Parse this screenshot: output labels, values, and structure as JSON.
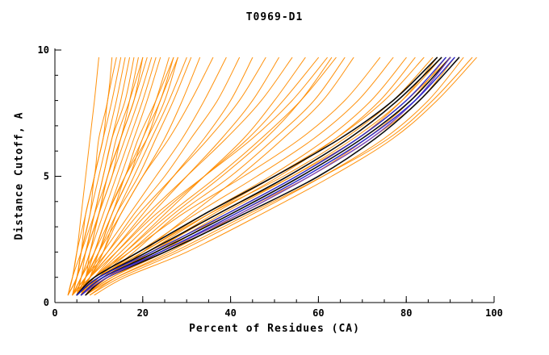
{
  "chart_data": {
    "type": "line",
    "title": "T0969-D1",
    "xlabel": "Percent of Residues (CA)",
    "ylabel": "Distance Cutoff, A",
    "x_axis": {
      "min": 0,
      "max": 100,
      "major_ticks": [
        0,
        20,
        40,
        60,
        80,
        100
      ],
      "minor_step": 5
    },
    "y_axis": {
      "min": 0,
      "max": 10,
      "major_ticks": [
        0,
        5,
        10
      ],
      "minor_step": 1
    },
    "y_grid": [
      0.3,
      1,
      2,
      3.5,
      5,
      6.5,
      8,
      9.7
    ],
    "groups": [
      {
        "name": "server-models-orange",
        "color": "#ff8c00",
        "stroke_width": 1,
        "curves": [
          [
            3,
            4,
            5,
            6,
            7,
            8,
            9,
            10
          ],
          [
            4,
            5,
            6,
            8,
            9,
            11,
            12,
            14
          ],
          [
            4,
            5,
            7,
            9,
            11,
            13,
            15,
            17
          ],
          [
            5,
            6,
            8,
            10,
            13,
            15,
            18,
            20
          ],
          [
            3,
            5,
            7,
            10,
            12,
            15,
            17,
            19
          ],
          [
            5,
            7,
            9,
            12,
            15,
            18,
            21,
            24
          ],
          [
            4,
            6,
            9,
            13,
            16,
            20,
            23,
            26
          ],
          [
            6,
            8,
            11,
            14,
            18,
            22,
            26,
            30
          ],
          [
            5,
            7,
            10,
            14,
            19,
            23,
            27,
            31
          ],
          [
            4,
            6,
            8,
            11,
            14,
            17,
            20,
            23
          ],
          [
            3,
            5,
            6,
            8,
            10,
            12,
            14,
            16
          ],
          [
            5,
            6,
            7,
            9,
            11,
            13,
            16,
            18
          ],
          [
            4,
            5,
            7,
            10,
            13,
            16,
            19,
            22
          ],
          [
            6,
            7,
            9,
            12,
            16,
            19,
            23,
            27
          ],
          [
            5,
            8,
            11,
            15,
            20,
            25,
            29,
            33
          ],
          [
            4,
            6,
            9,
            12,
            16,
            21,
            25,
            28
          ],
          [
            3,
            4,
            6,
            9,
            12,
            14,
            17,
            20
          ],
          [
            5,
            7,
            8,
            10,
            12,
            15,
            18,
            21
          ],
          [
            4,
            5,
            6,
            7,
            9,
            10,
            12,
            13
          ],
          [
            6,
            8,
            10,
            13,
            17,
            21,
            24,
            28
          ],
          [
            3,
            4,
            5,
            7,
            9,
            11,
            13,
            15
          ],
          [
            5,
            7,
            10,
            13,
            17,
            20,
            24,
            27
          ],
          [
            5,
            7,
            10,
            15,
            20,
            26,
            31,
            36
          ],
          [
            4,
            7,
            11,
            17,
            23,
            29,
            34,
            39
          ],
          [
            6,
            8,
            12,
            18,
            25,
            31,
            37,
            42
          ],
          [
            5,
            8,
            13,
            20,
            27,
            34,
            40,
            45
          ],
          [
            4,
            7,
            12,
            19,
            27,
            35,
            42,
            48
          ],
          [
            6,
            9,
            14,
            22,
            30,
            38,
            45,
            51
          ],
          [
            5,
            8,
            13,
            21,
            30,
            39,
            47,
            54
          ],
          [
            7,
            10,
            16,
            25,
            34,
            43,
            50,
            57
          ],
          [
            5,
            9,
            15,
            24,
            34,
            44,
            52,
            60
          ],
          [
            6,
            10,
            17,
            27,
            38,
            48,
            56,
            63
          ],
          [
            4,
            8,
            14,
            23,
            34,
            45,
            54,
            62
          ],
          [
            6,
            11,
            18,
            28,
            40,
            50,
            59,
            66
          ],
          [
            5,
            9,
            16,
            26,
            37,
            47,
            56,
            64
          ],
          [
            7,
            12,
            20,
            31,
            42,
            52,
            61,
            68
          ],
          [
            5,
            9,
            17,
            29,
            43,
            56,
            66,
            74
          ],
          [
            6,
            10,
            19,
            32,
            46,
            59,
            69,
            77
          ],
          [
            5,
            10,
            20,
            34,
            49,
            62,
            72,
            80
          ],
          [
            7,
            12,
            22,
            36,
            51,
            64,
            74,
            82
          ],
          [
            6,
            11,
            21,
            35,
            50,
            64,
            75,
            84
          ],
          [
            5,
            10,
            20,
            35,
            52,
            66,
            77,
            86
          ],
          [
            7,
            13,
            24,
            39,
            55,
            69,
            79,
            87
          ],
          [
            6,
            12,
            23,
            38,
            54,
            68,
            79,
            88
          ],
          [
            8,
            14,
            26,
            42,
            58,
            71,
            81,
            89
          ],
          [
            6,
            11,
            22,
            37,
            54,
            69,
            80,
            90
          ],
          [
            7,
            13,
            25,
            41,
            58,
            72,
            83,
            91
          ],
          [
            8,
            15,
            28,
            45,
            61,
            75,
            85,
            93
          ],
          [
            7,
            14,
            27,
            44,
            61,
            76,
            86,
            95
          ],
          [
            9,
            16,
            30,
            47,
            63,
            77,
            87,
            96
          ]
        ]
      },
      {
        "name": "selected-models-black",
        "color": "#000000",
        "stroke_width": 1.6,
        "curves": [
          [
            5,
            10,
            21,
            37,
            53,
            67,
            78,
            88
          ],
          [
            6,
            11,
            23,
            40,
            56,
            70,
            81,
            90
          ],
          [
            5,
            9,
            19,
            34,
            50,
            65,
            77,
            87
          ],
          [
            7,
            12,
            25,
            43,
            60,
            73,
            83,
            92
          ]
        ]
      },
      {
        "name": "highlight-model-purple",
        "color": "#7744bb",
        "stroke_width": 1.4,
        "curves": [
          [
            6,
            12,
            24,
            42,
            58,
            72,
            82,
            90
          ]
        ]
      },
      {
        "name": "highlight-models-blue",
        "color": "#2222cc",
        "stroke_width": 1.4,
        "curves": [
          [
            6,
            11,
            24,
            41,
            57,
            71,
            82,
            91
          ],
          [
            5,
            10,
            22,
            39,
            55,
            69,
            80,
            89
          ]
        ]
      }
    ]
  }
}
